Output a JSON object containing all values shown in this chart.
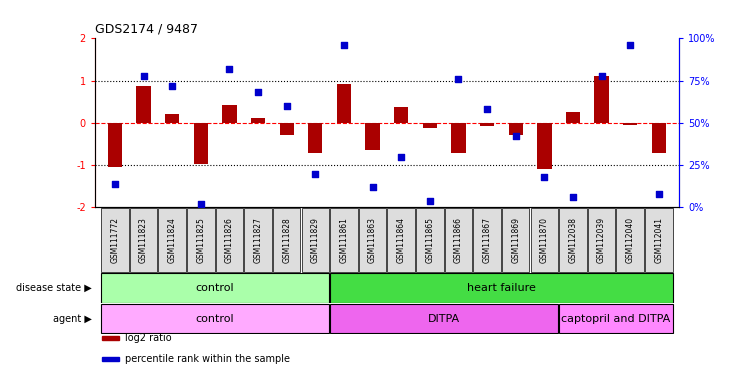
{
  "title": "GDS2174 / 9487",
  "samples": [
    "GSM111772",
    "GSM111823",
    "GSM111824",
    "GSM111825",
    "GSM111826",
    "GSM111827",
    "GSM111828",
    "GSM111829",
    "GSM111861",
    "GSM111863",
    "GSM111864",
    "GSM111865",
    "GSM111866",
    "GSM111867",
    "GSM111869",
    "GSM111870",
    "GSM112038",
    "GSM112039",
    "GSM112040",
    "GSM112041"
  ],
  "log2_ratio": [
    -1.05,
    0.88,
    0.22,
    -0.97,
    0.42,
    0.12,
    -0.28,
    -0.72,
    0.92,
    -0.65,
    0.38,
    -0.12,
    -0.72,
    -0.08,
    -0.28,
    -1.1,
    0.25,
    1.1,
    -0.05,
    -0.72
  ],
  "percentile_rank": [
    14,
    78,
    72,
    2,
    82,
    68,
    60,
    20,
    96,
    12,
    30,
    4,
    76,
    58,
    42,
    18,
    6,
    78,
    96,
    8
  ],
  "disease_state": [
    {
      "label": "control",
      "start": 0,
      "end": 8,
      "color": "#AAFFAA"
    },
    {
      "label": "heart failure",
      "start": 8,
      "end": 20,
      "color": "#44DD44"
    }
  ],
  "agent": [
    {
      "label": "control",
      "start": 0,
      "end": 8,
      "color": "#FFAAFF"
    },
    {
      "label": "DITPA",
      "start": 8,
      "end": 16,
      "color": "#EE66EE"
    },
    {
      "label": "captopril and DITPA",
      "start": 16,
      "end": 20,
      "color": "#FF88FF"
    }
  ],
  "bar_color": "#AA0000",
  "dot_color": "#0000CC",
  "ylim_left": [
    -2,
    2
  ],
  "ylim_right": [
    0,
    100
  ],
  "yticks_left": [
    -2,
    -1,
    0,
    1,
    2
  ],
  "yticks_right": [
    0,
    25,
    50,
    75,
    100
  ],
  "yticklabels_right": [
    "0%",
    "25%",
    "50%",
    "75%",
    "100%"
  ],
  "dotted_lines": [
    -1,
    1
  ],
  "zero_line": 0,
  "legend_items": [
    {
      "color": "#AA0000",
      "label": "log2 ratio"
    },
    {
      "color": "#0000CC",
      "label": "percentile rank within the sample"
    }
  ],
  "background_color": "#ffffff",
  "tick_bg_color": "#DDDDDD"
}
